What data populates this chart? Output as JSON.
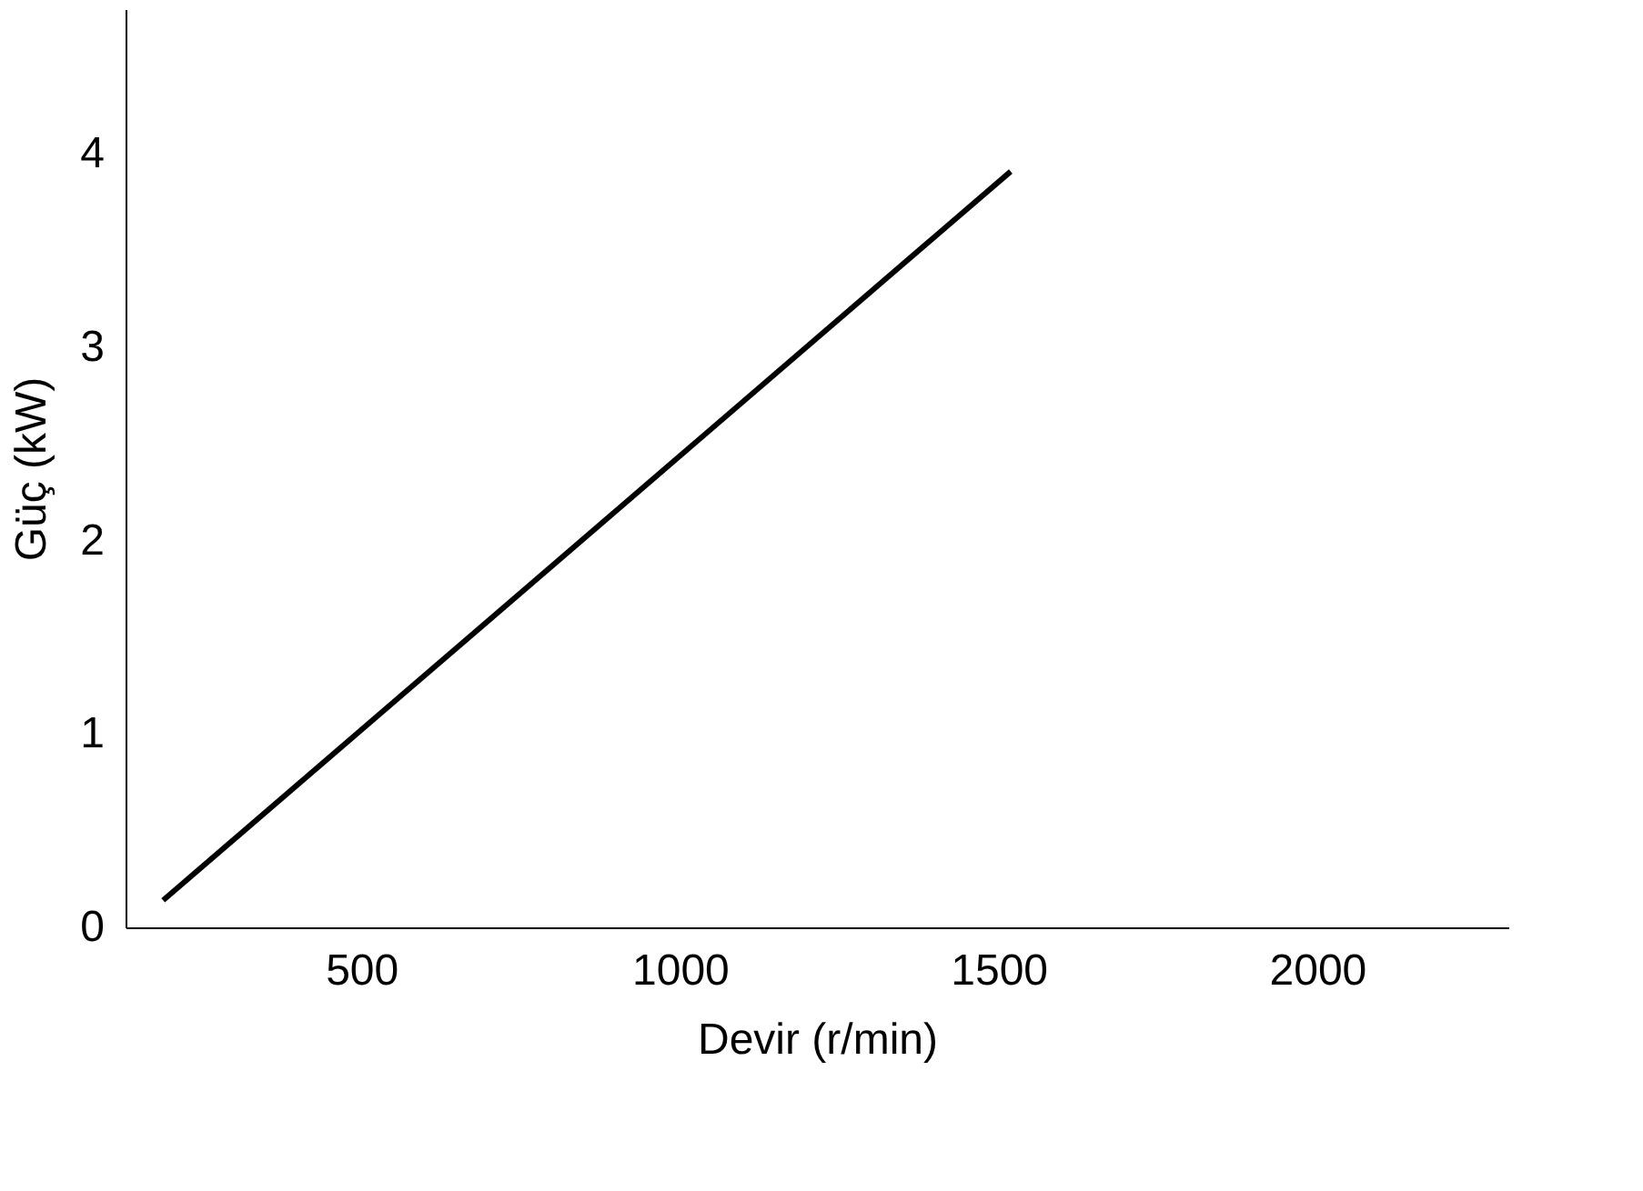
{
  "chart_data": {
    "type": "line",
    "xlabel": "Devir (r/min)",
    "ylabel": "Güç (kW)",
    "series": [
      {
        "color": "#000000",
        "x": [
          189,
          1519
        ],
        "values": [
          0.14,
          3.91
        ]
      }
    ],
    "xlim": [
      130,
      2300
    ],
    "xticks": [
      500,
      1000,
      1500,
      2000
    ],
    "ylim": [
      0,
      4.75
    ],
    "yticks": [
      0,
      1,
      2,
      3,
      4
    ],
    "grid": false,
    "legend": false,
    "marker": "none",
    "line_style": "solid"
  }
}
